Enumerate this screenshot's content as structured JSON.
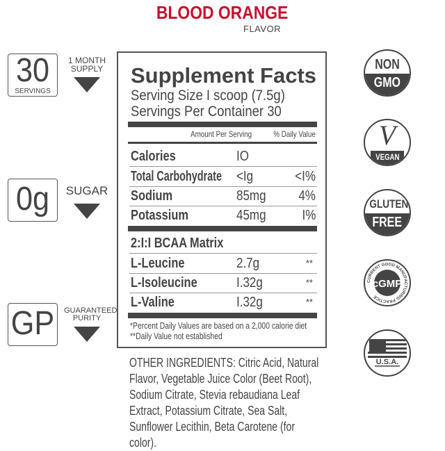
{
  "colors": {
    "accent_red": "#c8102e",
    "text_gray": "#444444"
  },
  "header": {
    "product": "BLOOD ORANGE",
    "flavor": "FLAVOR"
  },
  "badges": [
    {
      "big": "30",
      "small": "SERVINGS",
      "side": "1 MONTH SUPPLY",
      "side_lines": [
        "1 MONTH",
        "SUPPLY"
      ],
      "icon": "triangle-down-icon"
    },
    {
      "big": "0g",
      "small": "",
      "side": "SUGAR",
      "icon": "triangle-down-icon"
    },
    {
      "big": "GP",
      "small": "",
      "side_lines": [
        "GUARANTEED",
        "PURITY"
      ],
      "icon": "triangle-down-icon"
    }
  ],
  "facts": {
    "title": "Supplement Facts",
    "serving_size": "Serving Size I scoop (7.5g)",
    "servings_per_container": "Servings Per Container 30",
    "col_amount": "Amount Per Serving",
    "col_dv": "% Daily Value",
    "nutrients": [
      {
        "name": "Calories",
        "amount": "IO",
        "dv": ""
      },
      {
        "name": "Total Carbohydrate",
        "amount": "<Ig",
        "dv": "<I%"
      },
      {
        "name": "Sodium",
        "amount": "85mg",
        "dv": "4%"
      },
      {
        "name": "Potassium",
        "amount": "45mg",
        "dv": "I%"
      }
    ],
    "blend_title": "2:I:I BCAA Matrix",
    "blend": [
      {
        "name": "L-Leucine",
        "amount": "2.7g",
        "dv": "**"
      },
      {
        "name": "L-Isoleucine",
        "amount": "I.32g",
        "dv": "**"
      },
      {
        "name": "L-Valine",
        "amount": "I.32g",
        "dv": "**"
      }
    ],
    "footnote1": "*Percent Daily Values are based on a 2,000 calorie diet",
    "footnote2": "**Daily Value not established"
  },
  "ingredients": "OTHER INGREDIENTS: Citric Acid, Natural Flavor, Vegetable Juice Color (Beet Root), Sodium Citrate, Stevia rebaudiana Leaf Extract, Potassium Citrate, Sea Salt, Sunflower Lecithin, Beta Carotene (for color).",
  "seals": [
    {
      "top": "NON",
      "bottom": "GMO",
      "icon": "non-gmo-seal-icon"
    },
    {
      "top": "V",
      "bottom": "VEGAN",
      "icon": "vegan-seal-icon"
    },
    {
      "top": "GLUTEN",
      "bottom": "FREE",
      "icon": "gluten-free-seal-icon"
    },
    {
      "center": "cGMP",
      "ring": "CURRENT GOOD MANUFACTURING PRACTICE",
      "icon": "cgmp-seal-icon"
    },
    {
      "bottom": "U.S.A.",
      "icon": "usa-flag-seal-icon"
    }
  ]
}
